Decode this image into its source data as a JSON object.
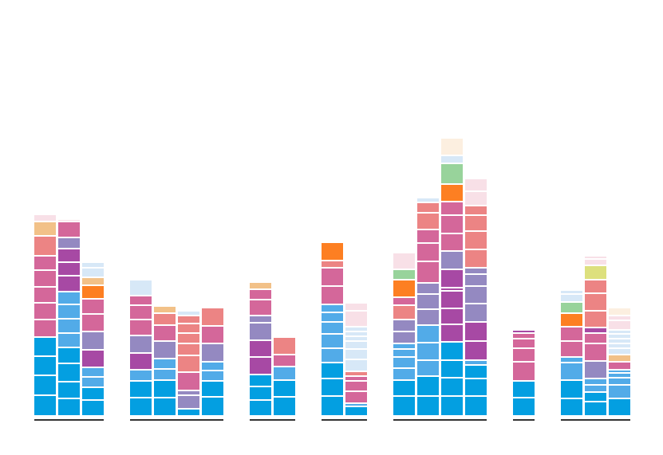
{
  "chart_data": {
    "type": "bar",
    "stacked": true,
    "title": "",
    "xlabel": "",
    "ylabel": "",
    "legend": "none",
    "grid": false,
    "palette": {
      "blue": "#039fe1",
      "lightblue": "#52abe8",
      "paleblue": "#d7e8f7",
      "pink": "#d4679a",
      "salmon": "#ec8484",
      "purple": "#a749a4",
      "lavender": "#9489c1",
      "orange": "#fd7f22",
      "peach": "#f2c188",
      "paleorange": "#fcefe0",
      "palepink": "#f8e0e7",
      "green": "#98d39b",
      "lime": "#dde07d"
    },
    "groups": [
      {
        "bars": [
          [
            [
              "blue",
              26
            ],
            [
              "blue",
              25
            ],
            [
              "blue",
              24
            ],
            [
              "blue",
              24
            ],
            [
              "pink",
              22
            ],
            [
              "pink",
              21
            ],
            [
              "pink",
              20
            ],
            [
              "pink",
              21
            ],
            [
              "pink",
              18
            ],
            [
              "salmon",
              25
            ],
            [
              "peach",
              18
            ],
            [
              "palepink",
              9
            ]
          ],
          [
            [
              "blue",
              22
            ],
            [
              "blue",
              21
            ],
            [
              "blue",
              23
            ],
            [
              "blue",
              20
            ],
            [
              "lightblue",
              18
            ],
            [
              "lightblue",
              18
            ],
            [
              "lightblue",
              18
            ],
            [
              "lightblue",
              16
            ],
            [
              "purple",
              20
            ],
            [
              "purple",
              17
            ],
            [
              "purple",
              17
            ],
            [
              "lavender",
              14
            ],
            [
              "pink",
              20
            ],
            [
              "palepink",
              3
            ]
          ],
          [
            [
              "blue",
              20
            ],
            [
              "blue",
              16
            ],
            [
              "lightblue",
              13
            ],
            [
              "lightblue",
              12
            ],
            [
              "purple",
              22
            ],
            [
              "lavender",
              23
            ],
            [
              "pink",
              22
            ],
            [
              "pink",
              19
            ],
            [
              "orange",
              17
            ],
            [
              "peach",
              10
            ],
            [
              "paleblue",
              12
            ],
            [
              "paleblue",
              7
            ]
          ]
        ]
      },
      {
        "bars": [
          [
            [
              "blue",
              23
            ],
            [
              "blue",
              21
            ],
            [
              "lightblue",
              14
            ],
            [
              "purple",
              21
            ],
            [
              "lavender",
              22
            ],
            [
              "pink",
              20
            ],
            [
              "pink",
              18
            ],
            [
              "pink",
              12
            ],
            [
              "paleblue",
              20
            ]
          ],
          [
            [
              "blue",
              23
            ],
            [
              "blue",
              22
            ],
            [
              "lightblue",
              14
            ],
            [
              "lightblue",
              13
            ],
            [
              "lavender",
              22
            ],
            [
              "pink",
              20
            ],
            [
              "salmon",
              15
            ],
            [
              "peach",
              9
            ]
          ],
          [
            [
              "blue",
              9
            ],
            [
              "lavender",
              17
            ],
            [
              "lavender",
              6
            ],
            [
              "pink",
              23
            ],
            [
              "salmon",
              21
            ],
            [
              "salmon",
              15
            ],
            [
              "salmon",
              13
            ],
            [
              "salmon",
              12
            ],
            [
              "salmon",
              10
            ],
            [
              "paleblue",
              6
            ]
          ],
          [
            [
              "blue",
              24
            ],
            [
              "blue",
              20
            ],
            [
              "lightblue",
              13
            ],
            [
              "lightblue",
              11
            ],
            [
              "lavender",
              23
            ],
            [
              "pink",
              22
            ],
            [
              "salmon",
              23
            ]
          ]
        ]
      },
      {
        "bars": [
          [
            [
              "blue",
              20
            ],
            [
              "blue",
              17
            ],
            [
              "blue",
              15
            ],
            [
              "purple",
              22
            ],
            [
              "purple",
              21
            ],
            [
              "lavender",
              22
            ],
            [
              "lavender",
              9
            ],
            [
              "pink",
              20
            ],
            [
              "pink",
              13
            ],
            [
              "peach",
              9
            ]
          ],
          [
            [
              "blue",
              24
            ],
            [
              "blue",
              21
            ],
            [
              "lightblue",
              17
            ],
            [
              "pink",
              15
            ],
            [
              "salmon",
              22
            ]
          ]
        ]
      },
      {
        "bars": [
          [
            [
              "blue",
              25
            ],
            [
              "blue",
              22
            ],
            [
              "blue",
              20
            ],
            [
              "lightblue",
              18
            ],
            [
              "lightblue",
              18
            ],
            [
              "lightblue",
              15
            ],
            [
              "lightblue",
              12
            ],
            [
              "lightblue",
              10
            ],
            [
              "pink",
              23
            ],
            [
              "pink",
              23
            ],
            [
              "salmon",
              9
            ],
            [
              "orange",
              23
            ]
          ],
          [
            [
              "blue",
              12
            ],
            [
              "lightblue",
              4
            ],
            [
              "pink",
              15
            ],
            [
              "pink",
              13
            ],
            [
              "pink",
              6
            ],
            [
              "salmon",
              6
            ],
            [
              "paleblue",
              15
            ],
            [
              "paleblue",
              13
            ],
            [
              "paleblue",
              10
            ],
            [
              "paleblue",
              6
            ],
            [
              "paleblue",
              6
            ],
            [
              "paleblue",
              6
            ],
            [
              "palepink",
              20
            ],
            [
              "palepink",
              10
            ]
          ]
        ]
      },
      {
        "bars": [
          [
            [
              "blue",
              25
            ],
            [
              "blue",
              20
            ],
            [
              "lightblue",
              15
            ],
            [
              "lightblue",
              14
            ],
            [
              "lightblue",
              10
            ],
            [
              "lightblue",
              7
            ],
            [
              "lavender",
              15
            ],
            [
              "lavender",
              15
            ],
            [
              "salmon",
              18
            ],
            [
              "pink",
              10
            ],
            [
              "orange",
              22
            ],
            [
              "green",
              13
            ],
            [
              "palepink",
              21
            ]
          ],
          [
            [
              "blue",
              25
            ],
            [
              "blue",
              25
            ],
            [
              "lightblue",
              20
            ],
            [
              "lightblue",
              22
            ],
            [
              "lightblue",
              22
            ],
            [
              "lavender",
              20
            ],
            [
              "lavender",
              19
            ],
            [
              "lavender",
              14
            ],
            [
              "pink",
              27
            ],
            [
              "pink",
              23
            ],
            [
              "pink",
              17
            ],
            [
              "salmon",
              21
            ],
            [
              "salmon",
              13
            ],
            [
              "paleblue",
              6
            ]
          ],
          [
            [
              "blue",
              25
            ],
            [
              "blue",
              23
            ],
            [
              "blue",
              22
            ],
            [
              "blue",
              23
            ],
            [
              "purple",
              22
            ],
            [
              "purple",
              20
            ],
            [
              "purple",
              22
            ],
            [
              "purple",
              4
            ],
            [
              "purple",
              23
            ],
            [
              "lavender",
              23
            ],
            [
              "pink",
              22
            ],
            [
              "pink",
              23
            ],
            [
              "pink",
              17
            ],
            [
              "orange",
              22
            ],
            [
              "green",
              26
            ],
            [
              "paleblue",
              10
            ],
            [
              "paleorange",
              22
            ]
          ],
          [
            [
              "blue",
              25
            ],
            [
              "blue",
              22
            ],
            [
              "blue",
              17
            ],
            [
              "lightblue",
              6
            ],
            [
              "purple",
              24
            ],
            [
              "purple",
              24
            ],
            [
              "lavender",
              23
            ],
            [
              "lavender",
              22
            ],
            [
              "lavender",
              15
            ],
            [
              "lavender",
              8
            ],
            [
              "salmon",
              23
            ],
            [
              "salmon",
              23
            ],
            [
              "salmon",
              20
            ],
            [
              "salmon",
              12
            ],
            [
              "palepink",
              18
            ],
            [
              "palepink",
              16
            ]
          ]
        ]
      },
      {
        "bars": [
          [
            [
              "blue",
              23
            ],
            [
              "blue",
              21
            ],
            [
              "pink",
              24
            ],
            [
              "pink",
              17
            ],
            [
              "pink",
              12
            ],
            [
              "pink",
              7
            ],
            [
              "purple",
              4
            ]
          ]
        ]
      },
      {
        "bars": [
          [
            [
              "blue",
              22
            ],
            [
              "blue",
              23
            ],
            [
              "lightblue",
              22
            ],
            [
              "lightblue",
              7
            ],
            [
              "pink",
              20
            ],
            [
              "pink",
              18
            ],
            [
              "orange",
              17
            ],
            [
              "green",
              14
            ],
            [
              "paleblue",
              10
            ],
            [
              "paleblue",
              5
            ]
          ],
          [
            [
              "blue",
              18
            ],
            [
              "blue",
              12
            ],
            [
              "lightblue",
              9
            ],
            [
              "lightblue",
              8
            ],
            [
              "lavender",
              22
            ],
            [
              "pink",
              22
            ],
            [
              "pink",
              13
            ],
            [
              "purple",
              7
            ],
            [
              "salmon",
              21
            ],
            [
              "salmon",
              22
            ],
            [
              "salmon",
              17
            ],
            [
              "lime",
              18
            ],
            [
              "palepink",
              8
            ],
            [
              "palepink",
              4
            ]
          ],
          [
            [
              "blue",
              22
            ],
            [
              "lightblue",
              17
            ],
            [
              "lightblue",
              9
            ],
            [
              "lightblue",
              6
            ],
            [
              "lightblue",
              4
            ],
            [
              "pink",
              10
            ],
            [
              "peach",
              9
            ],
            [
              "paleblue",
              8
            ],
            [
              "paleblue",
              6
            ],
            [
              "paleblue",
              6
            ],
            [
              "paleblue",
              6
            ],
            [
              "paleblue",
              5
            ],
            [
              "palepink",
              12
            ],
            [
              "palepink",
              6
            ],
            [
              "paleorange",
              10
            ]
          ]
        ]
      }
    ]
  }
}
